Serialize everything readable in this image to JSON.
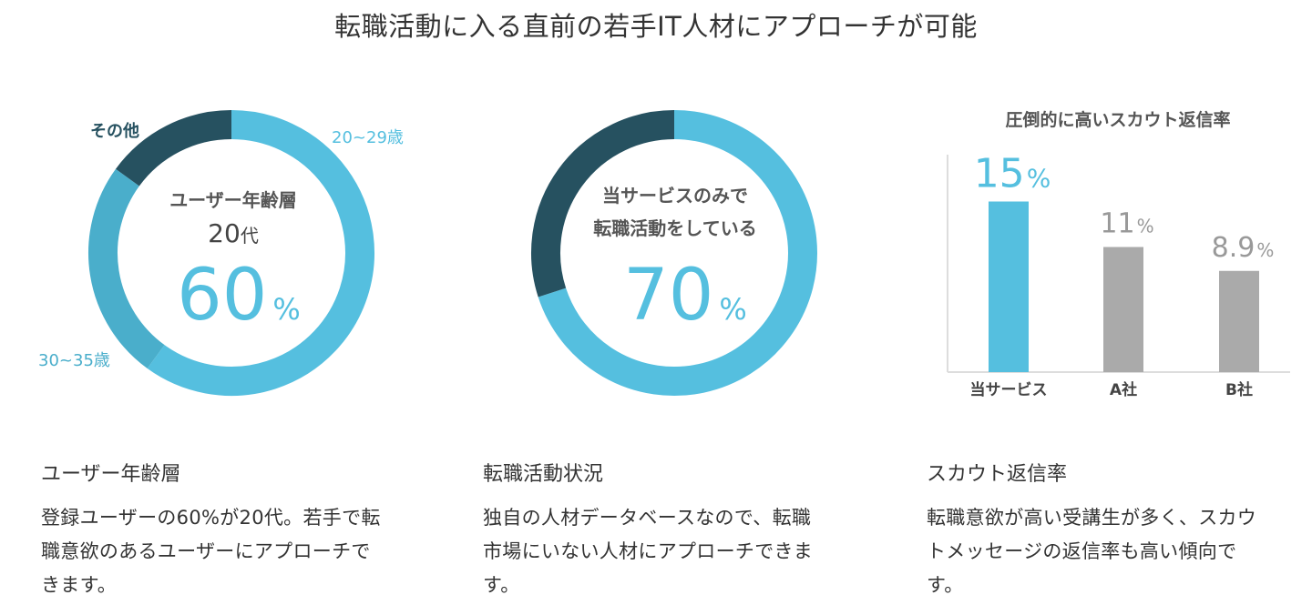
{
  "page_title": "転職活動に入る直前の若手IT人材にアプローチが可能",
  "colors": {
    "primary": "#55bfdf",
    "secondary": "#4aaecb",
    "dark": "#265160",
    "gray": "#aaaaaa",
    "text": "#333333"
  },
  "chart_data": [
    {
      "type": "pie",
      "variant": "donut",
      "center_label_1": "ユーザー年齢層",
      "center_label_2_num": "20",
      "center_label_2_suffix": "代",
      "center_value": "60",
      "center_unit": "%",
      "slices": [
        {
          "label": "20~29歳",
          "value": 60,
          "color": "#55bfdf"
        },
        {
          "label": "30~35歳",
          "value": 25,
          "color": "#4aaecb"
        },
        {
          "label": "その他",
          "value": 15,
          "color": "#265160"
        }
      ]
    },
    {
      "type": "pie",
      "variant": "donut",
      "center_label_1": "当サービスのみで",
      "center_label_2": "転職活動をしている",
      "center_value": "70",
      "center_unit": "%",
      "slices": [
        {
          "value": 70,
          "color": "#55bfdf"
        },
        {
          "value": 30,
          "color": "#265160"
        }
      ]
    },
    {
      "type": "bar",
      "title": "圧倒的に高いスカウト返信率",
      "categories": [
        "当サービス",
        "A社",
        "B社"
      ],
      "values": [
        15,
        11,
        8.9
      ],
      "value_labels": [
        "15",
        "11",
        "8.9"
      ],
      "unit": "%",
      "colors": [
        "#55bfdf",
        "#aaaaaa",
        "#aaaaaa"
      ],
      "ylim": [
        0,
        22
      ],
      "grid": false
    }
  ],
  "columns": [
    {
      "heading": "ユーザー年齢層",
      "lines": [
        "登録ユーザーの60%が20代。若手で転",
        "職意欲のあるユーザーにアプローチで",
        "きます。"
      ]
    },
    {
      "heading": "転職活動状況",
      "lines": [
        "独自の人材データベースなので、転職",
        "市場にいない人材にアプローチできま",
        "す。"
      ]
    },
    {
      "heading": "スカウト返信率",
      "lines": [
        "転職意欲が高い受講生が多く、スカウ",
        "トメッセージの返信率も高い傾向で",
        "す。"
      ]
    }
  ]
}
